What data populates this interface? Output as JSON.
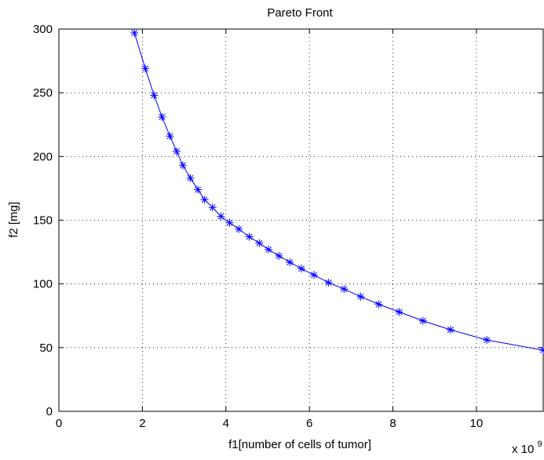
{
  "chart_data": {
    "type": "line",
    "title": "Pareto Front",
    "xlabel": "f1[number of cells of tumor]",
    "ylabel": "f2 [mg]",
    "x_exponent_label": "x 10",
    "x_exponent_power": "9",
    "xlim": [
      0,
      11.6
    ],
    "ylim": [
      0,
      300
    ],
    "x_scale_factor": 1000000000,
    "grid": true,
    "line_color": "#0000ff",
    "marker": "asterisk",
    "x_ticks": [
      0,
      2,
      4,
      6,
      8,
      10
    ],
    "x_tick_labels": [
      "0",
      "2",
      "4",
      "6",
      "8",
      "10"
    ],
    "y_ticks": [
      0,
      50,
      100,
      150,
      200,
      250,
      300
    ],
    "y_tick_labels": [
      "0",
      "50",
      "100",
      "150",
      "200",
      "250",
      "300"
    ],
    "series": [
      {
        "x": [
          1.81,
          2.07,
          2.28,
          2.47,
          2.66,
          2.82,
          2.97,
          3.15,
          3.33,
          3.49,
          3.68,
          3.88,
          4.09,
          4.31,
          4.56,
          4.8,
          5.02,
          5.27,
          5.53,
          5.81,
          6.11,
          6.46,
          6.83,
          7.23,
          7.66,
          8.15,
          8.72,
          9.38,
          10.25,
          11.6
        ],
        "y": [
          297,
          269,
          248,
          231,
          216,
          204,
          193,
          183,
          174,
          166,
          160,
          153,
          148,
          143,
          137,
          132,
          127,
          122,
          117,
          112,
          107,
          101,
          96,
          90,
          84,
          78,
          71,
          64,
          56,
          48
        ]
      }
    ]
  }
}
